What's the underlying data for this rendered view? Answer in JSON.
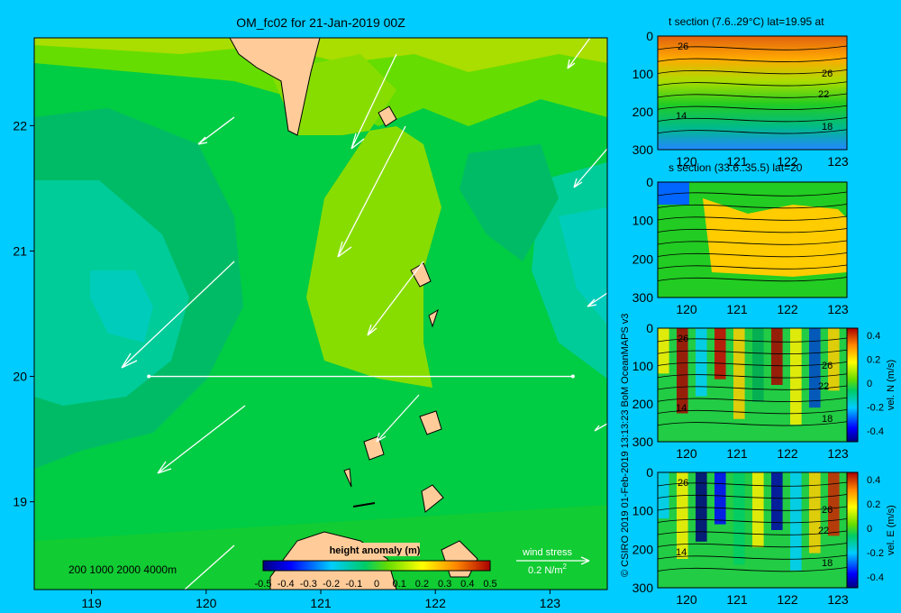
{
  "main_map": {
    "title": "OM_fc02 for 21-Jan-2019 00Z",
    "x_ticks": [
      "119",
      "120",
      "121",
      "122",
      "123"
    ],
    "x_tick_values": [
      119,
      120,
      121,
      122,
      123
    ],
    "y_ticks": [
      "22",
      "21",
      "20",
      "19"
    ],
    "y_tick_values": [
      22,
      21,
      20,
      19
    ],
    "xlim": [
      118.5,
      123.5
    ],
    "ylim": [
      18.3,
      22.7
    ],
    "depth_legend": "200  1000  2000  4000m",
    "wind_label": "wind stress",
    "wind_scale": "0.2 N/m",
    "wind_scale_sup": "2",
    "colorbar": {
      "title": "height anomaly (m)",
      "ticks": [
        "-0.5",
        "-0.4",
        "-0.3",
        "-0.2",
        "-0.1",
        "0",
        "0.1",
        "0.2",
        "0.3",
        "0.4",
        "0.5"
      ],
      "range": [
        -0.5,
        0.5
      ]
    },
    "section_line": {
      "lat": 20,
      "lon_start": 119.5,
      "lon_end": 123.2
    }
  },
  "panels": [
    {
      "title": "t section (7.6..29°C) lat=19.95 at",
      "contours": [
        "26",
        "26",
        "22",
        "14",
        "18"
      ]
    },
    {
      "title": "s section (33.6..35.5) lat=20",
      "contours": []
    },
    {
      "title": "",
      "contours": [
        "26",
        "26",
        "22",
        "14",
        "18"
      ],
      "colorbar_label": "vel. N (m/s)",
      "colorbar_ticks": [
        "0.4",
        "0.2",
        "0",
        "-0.2",
        "-0.4"
      ]
    },
    {
      "title": "",
      "contours": [
        "26",
        "26",
        "22",
        "14",
        "18"
      ],
      "colorbar_label": "vel. E (m/s)",
      "colorbar_ticks": [
        "0.4",
        "0.2",
        "0",
        "-0.2",
        "-0.4"
      ]
    }
  ],
  "panel_axes": {
    "x_ticks": [
      "120",
      "121",
      "122",
      "123"
    ],
    "y_ticks": [
      "0",
      "100",
      "200",
      "300"
    ]
  },
  "credit": "© CSIRO 2019   01-Feb-2019 13:13:23 BoM OceanMAPS v3"
}
